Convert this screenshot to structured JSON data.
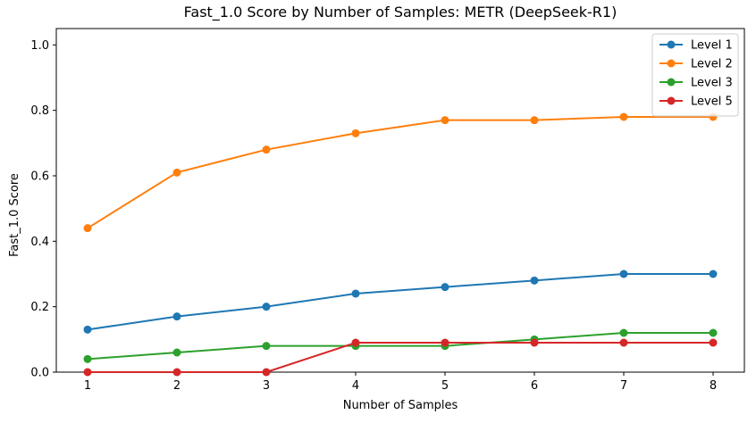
{
  "chart_data": {
    "type": "line",
    "title": "Fast_1.0 Score by Number of Samples: METR (DeepSeek-R1)",
    "xlabel": "Number of Samples",
    "ylabel": "Fast_1.0 Score",
    "x": [
      1,
      2,
      3,
      4,
      5,
      6,
      7,
      8
    ],
    "xticks": [
      "1",
      "2",
      "3",
      "4",
      "5",
      "6",
      "7",
      "8"
    ],
    "yticks": [
      "0.0",
      "0.2",
      "0.4",
      "0.6",
      "0.8",
      "1.0"
    ],
    "xlim": [
      0.65,
      8.35
    ],
    "ylim": [
      0,
      1.05
    ],
    "grid": false,
    "legend_position": "top-right",
    "series": [
      {
        "name": "Level 1",
        "color": "#1f77b4",
        "values": [
          0.13,
          0.17,
          0.2,
          0.24,
          0.26,
          0.28,
          0.3,
          0.3
        ]
      },
      {
        "name": "Level 2",
        "color": "#ff7f0e",
        "values": [
          0.44,
          0.61,
          0.68,
          0.73,
          0.77,
          0.77,
          0.78,
          0.78
        ]
      },
      {
        "name": "Level 3",
        "color": "#2ca02c",
        "values": [
          0.04,
          0.06,
          0.08,
          0.08,
          0.08,
          0.1,
          0.12,
          0.12
        ]
      },
      {
        "name": "Level 5",
        "color": "#d62728",
        "values": [
          0.0,
          0.0,
          0.0,
          0.09,
          0.09,
          0.09,
          0.09,
          0.09
        ]
      }
    ]
  }
}
